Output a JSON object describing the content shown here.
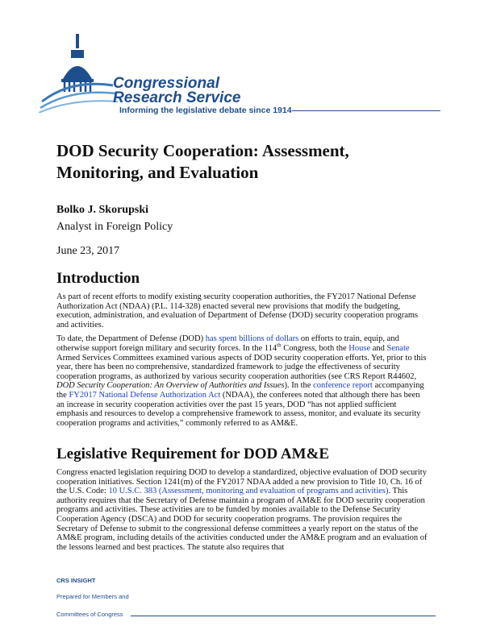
{
  "header": {
    "org_line1": "Congressional",
    "org_line2": "Research Service",
    "tagline": "Informing the legislative debate since 1914"
  },
  "title_lines": [
    "DOD Security Cooperation: Assessment,",
    "Monitoring, and Evaluation"
  ],
  "author": {
    "name": "Bolko J. Skorupski",
    "role": "Analyst in Foreign Policy"
  },
  "date": "June 23, 2017",
  "sections": [
    {
      "heading": "Introduction",
      "paragraphs": [
        [
          {
            "text": "As part of recent efforts to modify existing security cooperation authorities, the FY2017 National Defense Authorization Act (NDAA) (P.L. 114-328) enacted several new provisions that modify the budgeting, execution, administration, and evaluation of Department of Defense (DOD) security cooperation programs and activities."
          }
        ],
        [
          {
            "text": "To date, the Department of Defense (DOD) "
          },
          {
            "text": "has spent billions of dollars",
            "style": "link"
          },
          {
            "text": " on efforts to train, equip, and otherwise support foreign military and security forces. In the 114"
          },
          {
            "text": "th",
            "style": "sup"
          },
          {
            "text": " Congress, both the "
          },
          {
            "text": "House",
            "style": "link"
          },
          {
            "text": " and "
          },
          {
            "text": "Senate",
            "style": "link"
          },
          {
            "text": " Armed Services Committees examined various aspects of DOD security cooperation efforts. Yet, prior to this year, there has been no comprehensive, standardized framework to judge the effectiveness of security cooperation programs, as authorized by various security cooperation authorities (see CRS Report R44602, "
          },
          {
            "text": "DOD Security Cooperation: An Overview of Authorities and Issues",
            "style": "italic"
          },
          {
            "text": "). In the "
          },
          {
            "text": "conference report",
            "style": "link"
          },
          {
            "text": " accompanying the "
          },
          {
            "text": "FY2017 National Defense Authorization Act",
            "style": "link"
          },
          {
            "text": " (NDAA), the conferees noted that although there has been an increase in security cooperation activities over the past 15 years, DOD “has not applied sufficient emphasis and resources to develop a comprehensive framework to assess, monitor, and evaluate its security cooperation programs and activities,” commonly referred to as AM&E."
          }
        ]
      ]
    },
    {
      "heading": "Legislative Requirement for DOD AM&E",
      "paragraphs": [
        [
          {
            "text": "Congress enacted legislation requiring DOD to develop a standardized, objective evaluation of DOD security cooperation initiatives. Section 1241(m) of the FY2017 NDAA added a new provision to Title 10, Ch. 16 of the U.S. Code: "
          },
          {
            "text": "10 U.S.C. 383 (Assessment, monitoring and evaluation of programs and activities)",
            "style": "link"
          },
          {
            "text": ". This authority requires that the Secretary of Defense maintain a program of AM&E for DOD security cooperation programs and activities. These activities are to be funded by monies available to the Defense Security Cooperation Agency (DSCA) and DOD for security cooperation programs. The provision requires the Secretary of Defense to submit to the congressional defense committees a yearly report on the status of the AM&E program, including details of the activities conducted under the AM&E program and an evaluation of the lessons learned and best practices. The statute also requires that"
          }
        ]
      ]
    }
  ],
  "footer": {
    "label": "CRS INSIGHT",
    "line1": "Prepared for Members and",
    "line2": "Committees of Congress"
  }
}
